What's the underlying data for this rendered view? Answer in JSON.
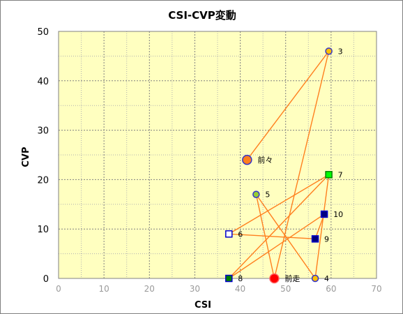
{
  "chart_data": {
    "type": "scatter",
    "title": "CSI-CVP変動",
    "xlabel": "CSI",
    "ylabel": "CVP",
    "xlim": [
      0,
      70
    ],
    "ylim": [
      0,
      50
    ],
    "xticks": [
      "0",
      "10",
      "20",
      "30",
      "40",
      "50",
      "60",
      "70"
    ],
    "yticks": [
      "0",
      "10",
      "20",
      "30",
      "40",
      "50"
    ],
    "grid": true,
    "plot_background": "#ffffc0",
    "line_color": "#ff7f1e",
    "points": [
      {
        "label": "前々",
        "x": 41.5,
        "y": 24,
        "marker": "circle-large",
        "fill": "#ff7f1e",
        "stroke": "#3333cc"
      },
      {
        "label": "前走",
        "x": 47.5,
        "y": 0,
        "marker": "circle-large",
        "fill": "#ff0000",
        "stroke": "#ff6666"
      },
      {
        "label": "3",
        "x": 59.5,
        "y": 46,
        "marker": "circle",
        "fill": "#ffc000",
        "stroke": "#3333cc"
      },
      {
        "label": "4",
        "x": 56.5,
        "y": 0,
        "marker": "circle",
        "fill": "#ffc000",
        "stroke": "#3333cc"
      },
      {
        "label": "5",
        "x": 43.5,
        "y": 17,
        "marker": "circle",
        "fill": "#99cc33",
        "stroke": "#3333cc"
      },
      {
        "label": "6",
        "x": 37.5,
        "y": 9,
        "marker": "square",
        "fill": "#ffffff",
        "stroke": "#0000cc"
      },
      {
        "label": "7",
        "x": 59.5,
        "y": 21,
        "marker": "square",
        "fill": "#00ff00",
        "stroke": "#008000"
      },
      {
        "label": "8",
        "x": 37.5,
        "y": 0,
        "marker": "square",
        "fill": "#008000",
        "stroke": "#0000cc"
      },
      {
        "label": "9",
        "x": 56.5,
        "y": 8,
        "marker": "square",
        "fill": "#000080",
        "stroke": "#0000cc"
      },
      {
        "label": "10",
        "x": 58.5,
        "y": 13,
        "marker": "square",
        "fill": "#000080",
        "stroke": "#0000cc"
      }
    ],
    "path_order": [
      "前々",
      "3",
      "前走",
      "5",
      "4",
      "7",
      "8",
      "10",
      "9",
      "6",
      "7"
    ]
  }
}
